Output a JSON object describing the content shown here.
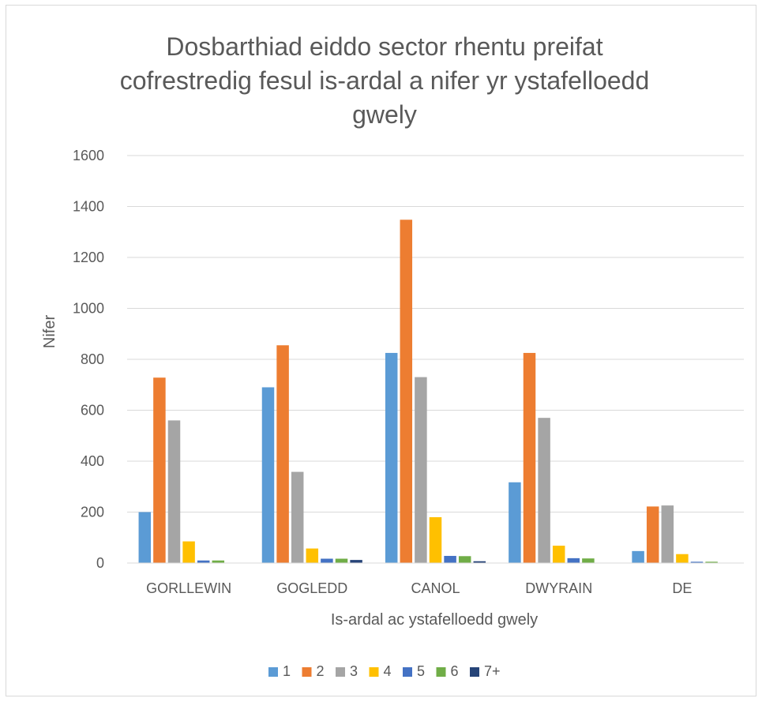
{
  "chart_data": {
    "type": "bar",
    "title_lines": [
      "Dosbarthiad eiddo sector rhentu preifat",
      "cofrestredig fesul is-ardal a nifer yr ystafelloedd",
      "gwely"
    ],
    "xlabel": "Is-ardal ac ystafelloedd gwely",
    "ylabel": "Nifer",
    "ylim": [
      0,
      1600
    ],
    "yticks": [
      "0",
      "200",
      "400",
      "600",
      "800",
      "1000",
      "1200",
      "1400",
      "1600"
    ],
    "grid": true,
    "legend_position": "bottom",
    "categories": [
      "GORLLEWIN",
      "GOGLEDD",
      "CANOL",
      "DWYRAIN",
      "DE"
    ],
    "series": [
      {
        "name": "1",
        "color": "#5b9bd5",
        "values": [
          200,
          690,
          825,
          317,
          47
        ]
      },
      {
        "name": "2",
        "color": "#ed7d31",
        "values": [
          728,
          855,
          1348,
          825,
          222
        ]
      },
      {
        "name": "3",
        "color": "#a5a5a5",
        "values": [
          560,
          358,
          730,
          570,
          226
        ]
      },
      {
        "name": "4",
        "color": "#ffc000",
        "values": [
          85,
          57,
          180,
          68,
          35
        ]
      },
      {
        "name": "5",
        "color": "#4472c4",
        "values": [
          10,
          17,
          28,
          19,
          5
        ]
      },
      {
        "name": "6",
        "color": "#70ad47",
        "values": [
          10,
          17,
          27,
          18,
          5
        ]
      },
      {
        "name": "7+",
        "color": "#264478",
        "values": [
          0,
          12,
          7,
          0,
          0
        ]
      }
    ]
  }
}
